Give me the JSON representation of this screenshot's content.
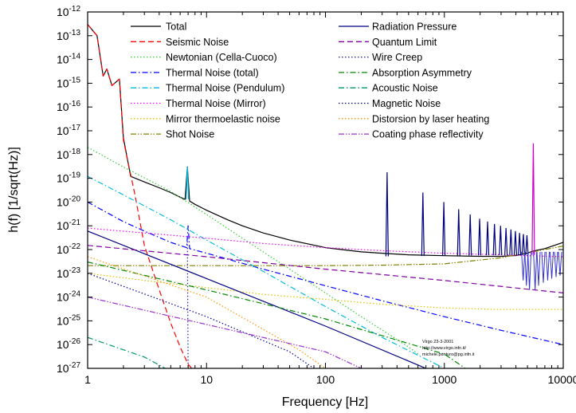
{
  "chart_data": {
    "type": "line",
    "xlabel": "Frequency [Hz]",
    "ylabel": "h(f)  [1/sqrt(Hz)]",
    "x_scale": "log",
    "y_scale": "log",
    "xlim": [
      1,
      10000
    ],
    "ylim": [
      1e-27,
      1e-12
    ],
    "legend_position": "top",
    "x_ticks": [
      {
        "label": "1",
        "value": 1
      },
      {
        "label": "10",
        "value": 10
      },
      {
        "label": "100",
        "value": 100
      },
      {
        "label": "1000",
        "value": 1000
      },
      {
        "label": "10000",
        "value": 10000
      }
    ],
    "y_ticks": [
      {
        "mant": "10",
        "exp": "-12",
        "value": 1e-12
      },
      {
        "mant": "10",
        "exp": "-13",
        "value": 1e-13
      },
      {
        "mant": "10",
        "exp": "-14",
        "value": 1e-14
      },
      {
        "mant": "10",
        "exp": "-15",
        "value": 1e-15
      },
      {
        "mant": "10",
        "exp": "-16",
        "value": 1e-16
      },
      {
        "mant": "10",
        "exp": "-17",
        "value": 1e-17
      },
      {
        "mant": "10",
        "exp": "-18",
        "value": 1e-18
      },
      {
        "mant": "10",
        "exp": "-19",
        "value": 1e-19
      },
      {
        "mant": "10",
        "exp": "-20",
        "value": 1e-20
      },
      {
        "mant": "10",
        "exp": "-21",
        "value": 1e-21
      },
      {
        "mant": "10",
        "exp": "-22",
        "value": 1e-22
      },
      {
        "mant": "10",
        "exp": "-23",
        "value": 1e-23
      },
      {
        "mant": "10",
        "exp": "-24",
        "value": 1e-24
      },
      {
        "mant": "10",
        "exp": "-25",
        "value": 1e-25
      },
      {
        "mant": "10",
        "exp": "-26",
        "value": 1e-26
      },
      {
        "mant": "10",
        "exp": "-27",
        "value": 1e-27
      }
    ],
    "annotation": [
      "Virgo 23-3-2001",
      "http://www.virgo.infn.it/",
      "michele.punturo@pg.infn.it"
    ],
    "series": [
      {
        "name": "Total",
        "color": "#000000",
        "dash": "solid",
        "width": 1.2,
        "points": [
          [
            1,
            3e-13
          ],
          [
            1.2,
            1e-13
          ],
          [
            1.35,
            2e-15
          ],
          [
            1.45,
            4e-15
          ],
          [
            1.6,
            8e-16
          ],
          [
            1.85,
            1.5e-15
          ],
          [
            2.0,
            5e-18
          ],
          [
            2.3,
            1.2e-19
          ],
          [
            3,
            7e-20
          ],
          [
            4,
            4e-20
          ],
          [
            5,
            2.5e-20
          ],
          [
            6,
            1.6e-20
          ],
          [
            6.6,
            1.3e-20
          ],
          [
            6.9,
            3e-19
          ],
          [
            7.2,
            1.1e-20
          ],
          [
            8,
            8e-21
          ],
          [
            10,
            4.5e-21
          ],
          [
            15,
            1.8e-21
          ],
          [
            20,
            1e-21
          ],
          [
            30,
            5e-22
          ],
          [
            50,
            2.5e-22
          ],
          [
            100,
            1.2e-22
          ],
          [
            200,
            8e-23
          ],
          [
            300,
            7e-23
          ],
          [
            500,
            6e-23
          ],
          [
            1000,
            5.5e-23
          ],
          [
            2000,
            5.2e-23
          ],
          [
            3000,
            5.2e-23
          ],
          [
            4000,
            5.6e-23
          ],
          [
            5000,
            7e-23
          ],
          [
            5500,
            8.5e-23
          ],
          [
            7000,
            1.1e-22
          ],
          [
            10000,
            2e-22
          ]
        ]
      },
      {
        "name": "Seismic Noise",
        "color": "#ff0000",
        "dash": "dashed",
        "width": 1.2,
        "points": [
          [
            1,
            3e-13
          ],
          [
            1.2,
            1e-13
          ],
          [
            1.35,
            2e-15
          ],
          [
            1.45,
            4e-15
          ],
          [
            1.6,
            8e-16
          ],
          [
            1.85,
            1.5e-15
          ],
          [
            2.0,
            4e-18
          ],
          [
            2.5,
            2e-20
          ],
          [
            3,
            1.5e-22
          ],
          [
            4,
            2e-24
          ],
          [
            5,
            8e-26
          ],
          [
            6,
            8e-27
          ],
          [
            7,
            1.5e-27
          ],
          [
            7.5,
            1e-27
          ]
        ]
      },
      {
        "name": "Newtonian (Cella-Cuoco)",
        "color": "#33cc33",
        "dash": "dotted",
        "width": 1.2,
        "points": [
          [
            1,
            2e-18
          ],
          [
            2,
            3e-19
          ],
          [
            5,
            2.8e-20
          ],
          [
            10,
            3e-21
          ],
          [
            20,
            3e-22
          ],
          [
            50,
            1.5e-23
          ],
          [
            100,
            1.5e-24
          ],
          [
            200,
            1.5e-25
          ],
          [
            500,
            8e-27
          ],
          [
            600,
            4e-27
          ]
        ]
      },
      {
        "name": "Thermal Noise (total)",
        "color": "#0000ff",
        "dash": "dashdot",
        "width": 1.2,
        "points": [
          [
            1,
            1e-20
          ],
          [
            2,
            1.5e-21
          ],
          [
            3,
            6e-22
          ],
          [
            5,
            2e-22
          ],
          [
            6.8,
            1.2e-22
          ],
          [
            7,
            1e-21
          ],
          [
            7.2,
            1.1e-22
          ],
          [
            10,
            7e-23
          ],
          [
            30,
            1.5e-23
          ],
          [
            100,
            3e-24
          ],
          [
            300,
            7e-25
          ],
          [
            1000,
            1.5e-25
          ],
          [
            3000,
            4e-26
          ],
          [
            10000,
            1e-26
          ]
        ]
      },
      {
        "name": "Thermal Noise (Pendulum)",
        "color": "#00bbdd",
        "dash": "dashdot",
        "width": 1.2,
        "points": [
          [
            1,
            1.2e-19
          ],
          [
            2,
            2e-20
          ],
          [
            5,
            1.8e-21
          ],
          [
            10,
            2.5e-22
          ],
          [
            30,
            1.2e-23
          ],
          [
            100,
            4e-25
          ],
          [
            300,
            2e-26
          ],
          [
            1000,
            1e-27
          ]
        ]
      },
      {
        "name": "Thermal Noise (Mirror)",
        "color": "#ff00ff",
        "dash": "dotted",
        "width": 1.2,
        "points": [
          [
            1,
            8e-22
          ],
          [
            3,
            5e-22
          ],
          [
            10,
            3e-22
          ],
          [
            30,
            1.8e-22
          ],
          [
            100,
            1.2e-22
          ],
          [
            300,
            9e-23
          ],
          [
            1000,
            7e-23
          ],
          [
            3000,
            6e-23
          ],
          [
            10000,
            5e-23
          ]
        ]
      },
      {
        "name": "Mirror thermoelastic noise",
        "color": "#e0c000",
        "dash": "dotted",
        "width": 1.2,
        "points": [
          [
            1,
            1e-23
          ],
          [
            3,
            5e-24
          ],
          [
            10,
            2.5e-24
          ],
          [
            30,
            1.3e-24
          ],
          [
            100,
            8e-25
          ],
          [
            300,
            5e-25
          ],
          [
            1000,
            3.5e-25
          ],
          [
            3000,
            3e-25
          ],
          [
            10000,
            3e-25
          ]
        ]
      },
      {
        "name": "Shot Noise",
        "color": "#808000",
        "dash": "dashdotdot",
        "width": 1.2,
        "points": [
          [
            1,
            2.1e-23
          ],
          [
            10,
            2.1e-23
          ],
          [
            100,
            2.1e-23
          ],
          [
            300,
            2.2e-23
          ],
          [
            1000,
            2.5e-23
          ],
          [
            3000,
            4.5e-23
          ],
          [
            10000,
            1.4e-22
          ]
        ]
      },
      {
        "name": "Radiation Pressure",
        "color": "#000080",
        "dash": "solid",
        "width": 1.2,
        "points": [
          [
            1,
            6e-22
          ],
          [
            10,
            6e-24
          ],
          [
            100,
            6e-26
          ],
          [
            700,
            1e-27
          ]
        ]
      },
      {
        "name": "Quantum Limit",
        "color": "#8000a0",
        "dash": "dashed",
        "width": 1.2,
        "points": [
          [
            1,
            1.5e-22
          ],
          [
            10,
            5e-23
          ],
          [
            100,
            1.5e-23
          ],
          [
            1000,
            5e-24
          ],
          [
            10000,
            1.5e-24
          ]
        ]
      },
      {
        "name": "Wire Creep",
        "color": "#1a1a99",
        "dash": "dotted",
        "width": 1.2,
        "points": [
          [
            6.9,
            3e-22
          ],
          [
            7,
            1e-27
          ]
        ]
      },
      {
        "name": "Absorption Asymmetry",
        "color": "#008800",
        "dash": "dashdot",
        "width": 1.2,
        "points": [
          [
            1,
            3e-23
          ],
          [
            10,
            2e-24
          ],
          [
            100,
            1.2e-25
          ],
          [
            1000,
            4e-27
          ],
          [
            1500,
            1e-27
          ]
        ]
      },
      {
        "name": "Acoustic Noise",
        "color": "#009966",
        "dash": "dashdot",
        "width": 1.2,
        "points": [
          [
            1,
            2e-26
          ],
          [
            3,
            3e-27
          ],
          [
            4.5,
            1e-27
          ]
        ]
      },
      {
        "name": "Magnetic Noise",
        "color": "#000099",
        "dash": "dotted",
        "width": 1.2,
        "points": [
          [
            1,
            1e-23
          ],
          [
            10,
            1.5e-25
          ],
          [
            50,
            5e-27
          ],
          [
            80,
            1e-27
          ]
        ]
      },
      {
        "name": "Distorsion by laser heating",
        "color": "#ff9900",
        "dash": "dotted",
        "width": 1.2,
        "points": [
          [
            1,
            5e-23
          ],
          [
            10,
            1e-24
          ],
          [
            60,
            6e-27
          ],
          [
            100,
            1e-27
          ]
        ]
      },
      {
        "name": "Coating phase reflectivity",
        "color": "#9933cc",
        "dash": "dashdotdot",
        "width": 1.2,
        "points": [
          [
            1,
            1e-24
          ],
          [
            10,
            7e-26
          ],
          [
            100,
            5e-27
          ],
          [
            200,
            1e-27
          ]
        ]
      }
    ],
    "spikes": [
      {
        "freq": 6.9,
        "peak": 3e-19,
        "color": "#00bbdd"
      },
      {
        "freq": 330,
        "peak": 1.8e-19,
        "color": "#000080"
      },
      {
        "freq": 660,
        "peak": 2.5e-20,
        "color": "#000080"
      },
      {
        "freq": 990,
        "peak": 1e-20,
        "color": "#000080"
      },
      {
        "freq": 1320,
        "peak": 5e-21,
        "color": "#000080"
      },
      {
        "freq": 1650,
        "peak": 3e-21,
        "color": "#000080"
      },
      {
        "freq": 1980,
        "peak": 2e-21,
        "color": "#000080"
      },
      {
        "freq": 2310,
        "peak": 1.5e-21,
        "color": "#000080"
      },
      {
        "freq": 2640,
        "peak": 1.2e-21,
        "color": "#000080"
      },
      {
        "freq": 2970,
        "peak": 1e-21,
        "color": "#000080"
      },
      {
        "freq": 3300,
        "peak": 8e-22,
        "color": "#000080"
      },
      {
        "freq": 3630,
        "peak": 7e-22,
        "color": "#000080"
      },
      {
        "freq": 3960,
        "peak": 6e-22,
        "color": "#000080"
      },
      {
        "freq": 4290,
        "peak": 5e-22,
        "color": "#000080"
      },
      {
        "freq": 4620,
        "peak": 4.5e-22,
        "color": "#000080"
      },
      {
        "freq": 4950,
        "peak": 4e-22,
        "color": "#000080"
      },
      {
        "freq": 5600,
        "peak": 3e-18,
        "color": "#cc00cc"
      }
    ],
    "dips": [
      {
        "freq": 4600,
        "low": 5e-24
      },
      {
        "freq": 4900,
        "low": 3e-24
      },
      {
        "freq": 5200,
        "low": 2e-24
      },
      {
        "freq": 5800,
        "low": 2e-24
      },
      {
        "freq": 6200,
        "low": 3e-24
      },
      {
        "freq": 6800,
        "low": 4e-24
      },
      {
        "freq": 7400,
        "low": 5e-24
      },
      {
        "freq": 8000,
        "low": 6e-24
      },
      {
        "freq": 8700,
        "low": 7e-24
      },
      {
        "freq": 9400,
        "low": 8e-24
      }
    ]
  }
}
